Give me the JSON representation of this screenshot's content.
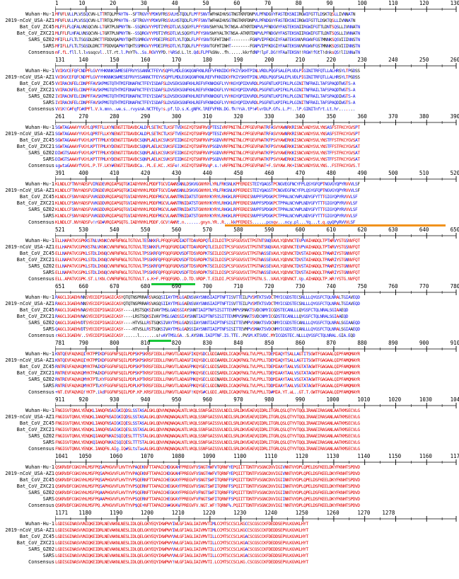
{
  "row_labels": [
    "Wuhan-Hu-1",
    "2019-nCoV_USA-AZ1",
    "Bat_CoV_ZC45",
    "Bat_CoV_ZXC21",
    "SARS_GZ02",
    "SARS",
    "Consensus"
  ],
  "colors": {
    "high": "#e00000",
    "low": "#1010e8",
    "neutral": "#111111",
    "ruler": "#000000",
    "bar_orange": "#f0921c",
    "bar_green": "#18c83a"
  },
  "blocks": [
    {
      "numbers": [
        "1",
        "10",
        "20",
        "30",
        "40",
        "50",
        "60",
        "70",
        "80",
        "90",
        "100",
        "110",
        "120",
        "130"
      ],
      "sequences": [
        "MFVFLVLLPLVSSQCVN-LTTRTQLPPAYTN--SFTRGVYYPDKVFRSSVLHSTQDLFLPFFSNVTWFHAIHVSGTNGTKRFDNPVLPFNDGVYFASTEKSNIIRGWIFGTTLDSKTQSLLIVNNATN",
        "MFVFLVLLPLVSSQCVN-LTTRTQLPPAYTN--SFTRGVYYPDKVFRSSVLHSTQDLFLPFFSNVTWFHAIHVSGTNGTKRFDNPVLPFNDGVYFASTEKSNIIRGWIFGTTLDSKTQSLLIVNNATN",
        "MLFFLFLQFALVNSQCVN-LTGRTPLNPNYTN--SSQRGVYYPDTIYRSDTLVLSQGYFLPFYSNVSWYYALTKTNSA-ATKRTDNPVLPFNDGVYFASTEKSNIIRGWIFGTTLDNTSQSLLIVNNATN",
        "MLFFLFLHFALVNSQCVN-LTGRTPLNPNYTN--SSQRGVYYPDTIYRSDTLVLSQGYFLPFYSNVSWYYALTKTNSA-ATKRTDNPVLPFNDGVYFASTEKSNIIRGWIFGTTLDNTSQSLLIVNNATN",
        "MFIFLLFLTLTSGSDLDRCTTFDDVQAPNYTQHTSSMRGVYYPDEIFRSDTLYLTQDLFLPFYSNVTGFHTINHT--------FGNPVIPFKDGIYFAATEKSNVVRGWVFGSTMNNKSQSVIIINNSTN",
        "MFIFLLFLTLTSGSDLDRCTTFDDVQAPNYTQHTSSMRGVYYPDEIFRSDTLYLTQDLFLPFYSNVTGFHTINHT--------FGNPVIPFKDGIYFAATEKSNVVRGWVFGSTMNNKSQSVIIINNSTN",
        "mF.fL.fll.l.lvssqcvl..lT.rt.l.PnYT%..Ss.RGVYYPD.!%RSd.L.lt.QdLFLPF%SNv..fh......kkrfdNP!lpF.DG!YFAaTEKSN!!RGW!fGtT!dnksQS!lIiNNaTN"
      ]
    },
    {
      "numbers": [
        "131",
        "140",
        "150",
        "160",
        "170",
        "180",
        "190",
        "200",
        "210",
        "220",
        "230",
        "240",
        "250",
        "260"
      ],
      "sequences": [
        "VVIKVCEFQFCNDPFLGVYYHKNNKSWMESEFRVYSSANNCTFEYVSQPFLMDLEGKQGNFKNLREFVFKNIDGYFKIYSKHTPINLVRDLPQGFSALEPLVDLPIGINITRFQTLLALHRSYLTPGDSS",
        "VVIKVCEFQFCNDPFLGVYYHKNNKSWMESEFRVYSSANNCTFEYVSQPFLMDLEGKQGNFKNLREFVFKNIDGYFKIYSKHTPINLVRDLPQGFSALEPLVDLPIGINITRFQTLLALHRSYLTPGDSS",
        "VVIRACNFELCDNPFFAVSKPMGTQTHTMIFDNAFNCTFEYISDAFSLDVSEKSGNFKHLREFVFKNKDGFLYVYKGYQPIDVVRDLPSGFNTLKPIFKLPLGINITNFRAILTAFSPAQDTWGTS-A",
        "VVIRACNFELCDNPFFAVSKPMGTQTHTMIFDNAFNCTFEYISDAFSLDVSEKSGNFKHLREFVFKNKDGFLYVYKGYQPIDVVRDLPSGFNTLKPIFKLPLGINITNFRAILTAFSPAQDTWGTS-A",
        "IVIRACNFELCDNPFFAVSKPMGTQTHTMIFDNAFNCTFEYISDAFSLDVSEKSGNFKHLREFVFKNKDGFLYVYKGYQPIDVVRDLPSGFNTLKPIFKLPLGINITNFRAILTAFSPAQDIWGTS-A",
        "IVIRACNFELCDNPFFAVSKPMGTQTHTMIFDNAFNCTFEYISDAFSLDVSEKSGNFKHLREFVFKNKDGFLYVYKGYQPIDVVRDLPSGFNTLKPIFKLPLGINITNFRAILTAFSPAQDIWGTS-A",
        "VViK!C#FqfC#dPFl.V.k.mnn..we.s..rvysnA.NCTFEy!s.pf.lD.s.K.gNFK.lREFVFKN.DG.fk!Ysk.tP!#lvrDLP.Gfs.L.P!..lP.GINITnfrt.Lt.hr......."
      ]
    },
    {
      "numbers": [
        "261",
        "270",
        "280",
        "290",
        "300",
        "310",
        "320",
        "330",
        "340",
        "350",
        "360",
        "370",
        "380",
        "390"
      ],
      "sequences": [
        "SGWTAGAAAYYVGYLQPRTFLLKYNENGTITDAVDCALDPLSETKCTLKSFTVEKGIYQTSNFRVQPTESIVRFPNITNLCPFGEVFNATRFASVYAWNRKRISNCVADYSVLYNSASFSTFKCYGVSPT",
        "SGWTAGAAAYYVGYLQPRTFLLKYNENGTITDAVDCALDPLSETKCTLKSFTVEKGIYQTSNFRVQPTESIVRFPNITNLCPFGEVFNATRFASVYAWNRKRISNCVADYSVLYNSASFSTFKCYGVSPT",
        "SGWTAGAAAYFVGYLKPTTFMLKYDENGTITDAVDCSQNPLAELKCSVKSFEIDKGIYQTSNFRVVPSGDVVRFPNITNLCPFGEVFNATKFPSVYAWERKKISNCVADYSVLYNSTFFSTFKCYGVSAT",
        "SGWTAGAAAYFVGYLKPTTFMLKYDENGTITDAVDCSQNPLAELKCSVKSFEIDKGIYQTSNFRVVPSGDVVRFPNITNLCPFGEVFNATKFPSVYAWERKKISNCVADYSVLYNSTFFSTFKCYGVSAT",
        "DIWGTSAAAYFVGYLKPTTFMLKYDENGTITDAVDCSQNPLAELKCSVKSFEIDKGIYQTSNFRVVPSGDVVRFPNITNLCPFGEVFNATKFPSVYAWERKKISNCVADYSVLYNSTFFSTFKCYGVSAT",
        "DIWGTSAAAYFVGYLKPTTFMLKYDENGTITDAVDCSQNPLAELKCSVKSFEIDKGIYQTSNFRVVPSGDVVRFPNITNLCPFGEVFNATKFPSVYAWERKKISNCVADYSVLYNSTFFSTFKCYGVSAT",
        "sgwtaGAAAYfVGYL.P.TF.LKY#ENGTITDAVDCa..PL.E.KC..KSFe!.KGIYQTSNFRVqP.s.!vRFPNITNLCPFGEVFNAT+F.SVYAW.RK+ISNCVADYSVLYNS..FSTFKCYGVS.T"
      ]
    },
    {
      "numbers": [
        "391",
        "400",
        "410",
        "420",
        "430",
        "440",
        "450",
        "460",
        "470",
        "480",
        "490",
        "500",
        "510",
        "520"
      ],
      "sequences": [
        "KLNDLCFTNVYADSFVIRGDEVRQIAPGQTGKIADYNYKLPDDFTGCVIAWNSNNLDSKVGGNYNYLYRLFRKSNLKPFERDISTEIYQAGSTPCNGVEGFNCYFPLQSYGFQPTNGVGYQPYRVVVLSF",
        "KLNDLCFTNVYADSFVIRGDEVRQIAPGQTGKIADYNYKLPDDFTGCVIAWNSNNLDSKVGGNYNYLYRLFRKSNLKPFERDISTEIYQAGSTPCNGVEGFNCYFPLQSYGFQPTNGVGYQPYRVVVLSF",
        "KLNDLCFSNVYADSFVVKGDDVRQIAPGQTGVIADYNYKLPDDFMGCVLAWNTRNIDATSTGNYNYKYRYLRHGKLRPFERDISNVPFSPDGKPCTPPALNCYWPLNDYGFYTTTGIGYQPYRVVVLSF",
        "KLNDLCFSNVYADSFVVKGDDVRQIAPGQTGVIADYNYKLPDDFMGCVLAWNTRNIDATSTGNYNYKYRYLRHGKLRPFERDISNVPFSPDGKPCTPPALNCYWPLNDYGFYTTTGIGYQPYRVVVLSF",
        "KLNDLCFSNVYADSFVVKGDDVRQIAPGQTGVIADYNYKLPDDFMGCVLAWNTRNIDATSTGNYNYKYRYLRHGKLRPFERDISNVPFSPDGKPCTPPALNCYWPLNDYGFYTTTGIGYQPYRVVVLSF",
        "KLNDLCFSNVYADSFVVKGDDVRQIAPGQTGVIADYNYKLPDDFMGCVLAWNTRNIDATSTGNYNYKYRYLRHGKLRPFERDISNVPFSPDGKPCTPPALNCYWPLNDYGFYTTTGIGYQPYRVVVLSF",
        "KLNDLCF.NVYADSFv!rGD#VRQIAPGQTG.IADYNYKLPDDF.GCV!AWNt.n.......gnyn.YR..R...kkPFERDIS......pcngv...ncy.pl...Yg...t.g.gyQPyRVVVLSF"
      ]
    },
    {
      "numbers": [
        "521",
        "530",
        "540",
        "550",
        "560",
        "570",
        "580",
        "590",
        "600",
        "610",
        "620",
        "630",
        "640",
        "650"
      ],
      "sequences": [
        "ELLHAPATVCGPKKSTNLVKNKCVNFNFNGLTGTGVLTESNKKFLPFQQFGRDIADTTDAVRDPQTLEILDITPCSFGGVSVITPGTNTSNQVAVLYQDVNCTEVPVAIHADQLTPTWRVYSTGSNVFQT",
        "ELLHAPATVCGPKKSTNLVKNKCVNFNFNGLTGTGVLTESNKKFLPFQQFGRDIADTTDAVRDPQTLEILDITPCSFGGVSVITPGTNTSNQVAVLYQDVNCTEVPVAIHADQLTPTWRVYSTGSNVFQT",
        "ELLNAPATVCGPKLSTDLIKNQCVNFNFNGLTGTGVLTPSSKRFQPFQQFGRDVSDFTDSVRDPKTSEILDISPCSFGGVSVITPGTNASSEVAVLYQDVNCTDVSTAIHADQLTPAWRIYSTGNNVFQT",
        "ELLNAPATVCGPKLSTDLIKNQCVNFNFNGLTGTGVLTPSSKRFQPFQQFGRDVSDFTDSVRDPKTSEILDISPCSFGGVSVITPGTNASSEVAVLYQDVNCTDVSTAIHADQLTPAWRIYSTGNNVFQT",
        "ELLNAPATVCGPKLSTDLIKNQCVNFNFNGLTGTGVLTPSSKRFQPFQQFGRDVSDFTDSVRDPKTSEILDISPCSFGGVSVITPGTNASSEVAVLYQDVNCTDVSTAIHADQLTPAWRIYSTGNNVFQT",
        "ELLNAPATVCGPKLSTDLIKNQCVNFNFNGLTGTGVLTPSSKRFQPFQQFGRDVSDFTDSVRDPKTSEILDISPCSFGGVSVITPGTNASSEVAVLYQDVNCTDVSTAIHADQLTPAWRIYSTGNNVFQT",
        "ELL.APATVCGPK.ST.L!KN.CVNFNFNGLTGTGVLT.s.K+F.PFQQFGRD..D.TD.VRDP.T.EILDI.PCSFGGVSVITPGTN.S..VAVLYQDVNCT.Vp.AIHADQLTP.WR!YSTG.NVFQT"
      ]
    },
    {
      "numbers": [
        "651",
        "660",
        "670",
        "680",
        "690",
        "700",
        "710",
        "720",
        "730",
        "740",
        "750",
        "760",
        "770",
        "780"
      ],
      "sequences": [
        "RAGCLIGAEHVNNSYECDIPIGAGICASYQTQTNSPRRARSVASQSIIAYTMSLGAENSVAYSNNSIAIPTNFTISVTTEILPVSMTKTSVDCTMYICGDSTECSNLLLQYGSFCTQLNRALTGIAVEQD",
        "RAGCLIGAEHVNNSYECDIPIGAGICASYQTQTNSPRRARSVASQSIIAYTMSLGAENSVAYSNNSIAIPTNFTISVTTEILPVSMTKTSVDCTMYICGDSTECSNLLLQYGSFCTQLNRALTGIAVEQD",
        "RAGCLIGAEHVNASYECDIPIGAGICASY----LRSTSQKSIVAYTMSLGADSSIAYSNNTIAIPTNFSISITTEVMPVSMAKTSVDCNMYICGDSTECANLLLQYGSFCTQLNRALSGIAAEQD",
        "RAGCLIGAEHVNASYECDIPIGAGICASY----LRSTSQKSIVAYTMSLGADSSIAYSNNTIAIPTNFSISITTEVMPVSMAKTSVDCNMYICGDSTECANLLLQYGSFCTQLNRALSGIAAEQD",
        "QAGCLIGAEHVDTSYECDIPIGAGICASY----HTVSLLRSTSQKSIVAYTMSLGADSSIAYSNNTIAIPTNFSISITTEVMPVSMAKTSVDCNMYICGDSTECANLLLQYGSFCTQLNRALSGIAAEQD",
        "QAGCLIGAEHVDTSYECDIPIGAGICASY----HTVSLLRSTSQKSIVAYTMSLGADSSIAYSNNTIAIPTNFSISITTEVMPVSMAKTSVDCNMYICGDSTECANLLLQYGSFCTQLNRALSGIAAEQD",
        "rAGCLIGAEHV..SYECDIPIGAGICASY......l.......s!vAYTMSLGA..S.AYSNN.IAIPTNF.IS.TTE..PVSM.KTSVDC.MYICGDSTEC.NLLLQYGSFCTQLNRAL.GIA.EQD"
      ]
    },
    {
      "numbers": [
        "781",
        "790",
        "800",
        "810",
        "820",
        "830",
        "840",
        "850",
        "860",
        "870",
        "880",
        "890",
        "900",
        "910"
      ],
      "sequences": [
        "KNTQEVFAQVKQIYKTPPIKDFGGFNFSQILPDPSKPSKRSFIEDLLFNKVTLADAGFIKQYGDCLGDIAARDLICAQKFNGLTVLPPLLTDEMIAQYTSALLAGTITSGWTFGAGAALQIPFAMQMAYR",
        "KNTQEVFAQVKQIYKTPPIKDFGGFNFSQILPDPSKPSKRSFIEDLLFNKVTLADAGFIKQYGDCLGDIAARDLICAQKFNGLTVLPPLLTDEMIAQYTSALLAGTITSGWTFGAGAALQIPFAMQMAYR",
        "RNTREVFAQVKQMYKTPAIKDFGGFNFSQILPDPSKPTKRSFIEDLLFNKVTLADAGFMKQYGECLGDISARDLICAQKFNGLTVLPPLLTDEMIAAYTAALVSGTATAGWTFGAGAALQIPFAMQMAYR",
        "RNTREVFAQVKQMYKTPAIKDFGGFNFSQILPDPSKPTKRSFIEDLLFNKVTLADAGFMKQYGECLGDISARDLICAQKFNGLTVLPPLLTDEMIAAYTAALVSGTATAGWTFGAGAALQIPFAMQMAYR",
        "RNTREVFAQVKQMYKTPTLKYFGGFNFSQILPDPLKPTKRSFIEDLLFNKVTLADAGFMKQYGECLGDINARDLICAQKFNGLTVLPPLLTDDMIAAYTAALVSGTATAGWTFGAGAALQIPFAMQMAYR",
        "RNTREVFAQVKQMYKTPTLKYFGGFNFSQILPDPLKPTKRSFIEDLLFNKVTLADAGFMKQYGECLGDINARDLICAQKFNGLTVLPPLLTDDMIAAYTAALVSGTATAGWTFGAGAALQIPFAMQMAYR",
        "+NT.EVFAQVKQ!YKTP.ikdFGGFNFSQILPDP.KP.KRSFIEDLLFNKVTLADAGF!KQYG#CLGDI.ARDLICAQKFNGLTVLPPLLTD#MIA.YT.aL..GT.T.GWTFGAGAALQIPFAMQMAYR"
      ]
    },
    {
      "numbers": [
        "911",
        "920",
        "930",
        "940",
        "950",
        "960",
        "970",
        "980",
        "990",
        "1000",
        "1010",
        "1020",
        "1030",
        "1040"
      ],
      "sequences": [
        "FNGIGVTQNVLYENQKLIANQFNSAIGKIQDSLSSTASALGKLQDVVNQNAQALNTLVKQLSSNFGAISSVLNDILSRLDKVEAEVQIDRLITGRLQSLQTYVTQQLIRAAEIRASANLAATKMSECVLG",
        "FNGIGVTQNVLYENQKLIANQFNSAIGKIQDSLSSTASALGKLQDVVNQNAQALNTLVKQLSSNFGAISSVLNDILSRLDKVEAEVQIDRLITGRLQSLQTYVTQQLIRAAEIRASANLAATKMSECVLG",
        "FNGIGVTQNVLYENQKLIANQFNSAIGKIQESLSSTASALGKLQDVVNQNAQALNTLVKQLSSNFGAISSVLNDILSRLDKVEAEVQIDRLITGRLQSLQTYVTQQLIRAAEIRASANLAATKMSECVLG",
        "FNGIGVTQNVLYENQKLIANQFNSAIGKIQESLSSTASALGKLQDVVNQNAQALNTLVKQLSSNFGAISSVLNDILSRLDKVEAEVQIDRLITGRLQSLQTYVTQQLIRAAEIRASANLAATKMSECVLG",
        "FNGIGVTQNVLYENQKQIANQFNKAISQIQESLTTTSTALGKLQDVVNQNAQALNTLVKQLSSNFGAISSVLNDILSRLDKVEAEVQIDRLITGRLQSLQTYVTQQLIRAAEIRASANLAATKMSECVLG",
        "FNGIGVTQNVLYENQKQIANQFNKAISQIQESLTTTSTALGKLQDVVNQNAQALNTLVKQLSSNFGAISSVLNDILSRLDKVEAEVQIDRLITGRLQSLQTYVTQQLIRAAEIRASANLAATKMSECVLG",
        "FNGIGVTQNVLYENQK.IANQFN.AIg.IQ#SLtsTasALGKLQDVVNQNAQALNTLVKQLSSNFGAISSVLNDILSRLDKVEAEVQIDRLITGRLQSLQTYVTQQLIRAAEIRASANLAATKMSECVLG"
      ]
    },
    {
      "numbers": [
        "1041",
        "1050",
        "1060",
        "1070",
        "1080",
        "1090",
        "1100",
        "1110",
        "1120",
        "1130",
        "1140",
        "1150",
        "1160",
        "1170"
      ],
      "sequences": [
        "QSKRVDFCGKGYHLMSFPQSAPHGVVFLHVTYVPAQEKNFTTAPAICHDGKAHFPREGVFVSNGTHWFVTQRNFYEPQIITTDNTFVSGNCDVVIGIVNNTVYDPLQPELDSFKEELDKYFKNHTSPDVD",
        "QSKRVDFCGKGYHLMSFPQSAPHGVVFLHVTYVPAQEKNFTTAPAICHDGKAHFPREGVFVSNGTHWFVTQRNFYEPQIITTDNTFVSGNCDVVIGIVNNTVYDPLQPELDSFKEELDKYFKNHTSPDVD",
        "QSKRVDFCGKGYHLMSFPQSAPHGVVFLHVTYVPSQERNFTTAPAICHEGKAYFPREGVFVSNGTSWFITQRNFFSPQIITTDNTFVSGNCDVVIGIINNTVYDPLQPELDSFKEELDKYFKNHTSPDVD",
        "QSKRVDFCGKGYHLMSFPQSAPHGVVFLHVTYVPSQERNFTTAPAICHEGKAYFPREGVFVSNGTSWFITQRNFFSPQIITTDNTFVSGNCDVVIGIINNTVYDPLQPELDSFKEELDKYFKNHTSPDVD",
        "QSKRVDFCGKGYHLMSFPQAAPHGVVFLHVTYVPSQERNFTTAPAICHEGKAYFPREGVFVFNGTSWFITQRNFFSPQIITTDNTFVSGNCDVVIGIINNTVYDPLQPELDSFKEELDKYFKNHTSPDVD",
        "QSKRVDFCGKGYHLMSFPQAAPHGVVFLHVTYVPSQERNFTTAPAICHEGKAYFPREGVFVFNGTSWFITQRNFFSPQIITTDNTFVSGNCDVVIGIINNTVYDPLQPELDSFKEELDKYFKNHTSPDVD",
        "QSKRVDFCGKGYHLMSFPQ.APHGVVFLHVTYVP$QE+NFTTAPAICH#GKA%FPREGVFV.NGT.WF!TQRNF%.PQIITTDNTFVSGNCDVVIGI!NNTVYDPLQPELDSFKEELDKYFKNHTSPDVD"
      ]
    },
    {
      "numbers": [
        "1171",
        "1180",
        "1190",
        "1200",
        "1210",
        "1220",
        "1230",
        "1240",
        "1250",
        "1260",
        "1270",
        "1278"
      ],
      "sequences": [
        "LGDISGINASVVNIQKEIDRLNEVAKNLNESLIDLQELGKYEQYIKWPWYIWLGFIAGLIAIVMVTIMLCCMTSCCSCLKGCCSCGSCCKFDEDDSEPVLKGVKLHYT",
        "LGDISGINASVVNIQKEIDRLNEVAKNLNESLIDLQELGKYEQYIKWPWYIWLGFIAGLIAIVMVTIMLCCMTSCCSCLKGCCSCGSCCKFDEDDSEPVLKGVKLHYT",
        "LGDISGINASVVNIQKEIDRLNEVAKNLNESLIDLQELGKYEQYIKWPWYVWLGFIAGLIAIVMVTILLCCMTSCCSCLKGACSCGSCCKFDEDDSEPVLKGVKLHYT",
        "LGDISGINASVVNIQKEIDRLNEVAKNLNESLIDLQELGKYEQYIKWPWYVWLGFIAGLIAIVMVTILLCCMTSCCSCLKGACSCGSCCKFDEDDSEPVLKGVKLHYT",
        "LGDISGINASVVNIQKEIDRLNEVAKNLNESLIDLQELGKYEQYIKWPWYVWLGFIAGLIAIVMVTILLCCMTSCCSCLKGACSCGSCCKFDEDDSEPVLKGVKLHYT",
        "LGDISGINASVVNIQKEIDRLNEVAKNLNESLIDLQELGKYEQYIKWPWYVWLGFIAGLIAIVMVTILLCCMTSCCSCLKGACSCGSCCKFDEDDSEPVLKGVKLHYT",
        "LGDISGINASVVNIQKEIDRLNEVAKNLNESLIDLQELGKYEQYIKWPWY!WLGFIAGLIAIVMVTI.LCCMTSCCSCLKG.CSCGSCCKFDEDDSEPVLKGVKLHYT"
      ]
    }
  ]
}
